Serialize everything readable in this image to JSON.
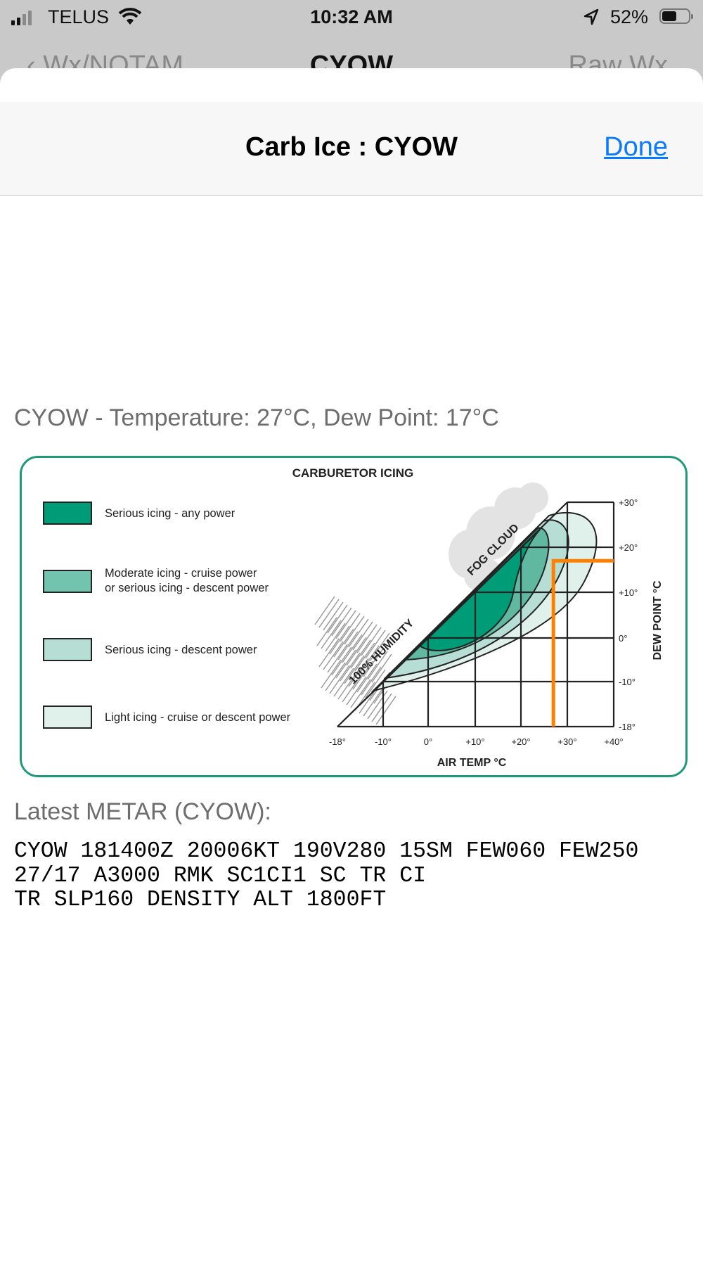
{
  "status_bar": {
    "carrier": "TELUS",
    "time": "10:32 AM",
    "battery": "52%",
    "battery_level": 0.52
  },
  "background_nav": {
    "back": "Wx/NOTAM",
    "title": "CYOW",
    "right": "Raw Wx"
  },
  "navbar": {
    "title": "Carb Ice : CYOW",
    "done": "Done"
  },
  "conditions": "CYOW - Temperature: 27°C, Dew Point: 17°C",
  "chart_data": {
    "type": "diagram",
    "title": "CARBURETOR ICING",
    "xlabel": "AIR TEMP °C",
    "ylabel": "DEW POINT °C",
    "x_ticks": [
      {
        "value": -18,
        "label": "-18°"
      },
      {
        "value": -10,
        "label": "-10°"
      },
      {
        "value": 0,
        "label": "0°"
      },
      {
        "value": 10,
        "label": "+10°"
      },
      {
        "value": 20,
        "label": "+20°"
      },
      {
        "value": 30,
        "label": "+30°"
      },
      {
        "value": 40,
        "label": "+40°"
      }
    ],
    "y_ticks": [
      {
        "value": 30,
        "label": "+30°"
      },
      {
        "value": 20,
        "label": "+20°"
      },
      {
        "value": 10,
        "label": "+10°"
      },
      {
        "value": 0,
        "label": "0°"
      },
      {
        "value": -10,
        "label": "-10°"
      },
      {
        "value": -18,
        "label": "-18°"
      }
    ],
    "xlim": [
      -18,
      40
    ],
    "ylim": [
      -18,
      30
    ],
    "annotations": [
      "FOG CLOUD",
      "100% HUMIDITY"
    ],
    "legend": [
      {
        "lines": [
          "Serious icing - any power"
        ],
        "color": "#009c78"
      },
      {
        "lines": [
          "Moderate icing - cruise power",
          "or serious icing - descent power"
        ],
        "color": "#73c4ae"
      },
      {
        "lines": [
          "Serious icing - descent power"
        ],
        "color": "#b7ded4"
      },
      {
        "lines": [
          "Light icing - cruise or descent power"
        ],
        "color": "#e0f1ec"
      }
    ],
    "legend_position": "left",
    "marker": {
      "temperature": 27,
      "dew_point": 17,
      "color": "#ff8000"
    }
  },
  "metar_label": "Latest METAR (CYOW):",
  "metar_lines": [
    "CYOW 181400Z 20006KT 190V280 15SM FEW060 FEW250",
    "27/17 A3000 RMK SC1CI1 SC TR CI",
    "TR SLP160 DENSITY ALT 1800FT"
  ]
}
